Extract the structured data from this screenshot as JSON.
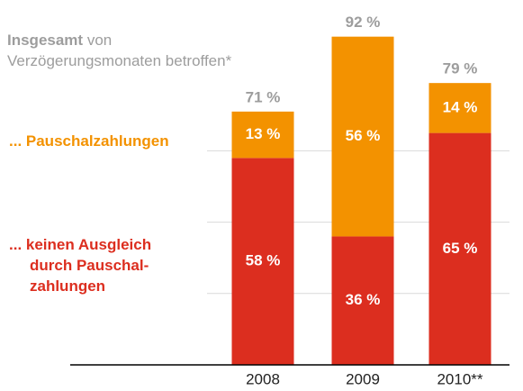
{
  "chart_data": {
    "type": "stacked_bar",
    "title_bold": "Insgesamt",
    "title": " von\nVerzögerungsmonaten betroffen*",
    "categories": [
      "2008",
      "2009",
      "2010**"
    ],
    "series": [
      {
        "name": "... keinen Ausgleich\ndurch Pauschal-\nzahlungen",
        "color": "#dc2e1f",
        "values": [
          58,
          36,
          65
        ],
        "value_labels": [
          "58 %",
          "36 %",
          "65 %"
        ]
      },
      {
        "name": "... Pauschalzahlungen",
        "color": "#f39200",
        "values": [
          13,
          56,
          14
        ],
        "value_labels": [
          "13 %",
          "56 %",
          "14 %"
        ]
      }
    ],
    "totals": [
      71,
      92,
      79
    ],
    "total_labels": [
      "71 %",
      "92 %",
      "79 %"
    ],
    "ylim": [
      0,
      100
    ],
    "yticks": [
      20,
      40,
      60
    ],
    "grid": true
  }
}
